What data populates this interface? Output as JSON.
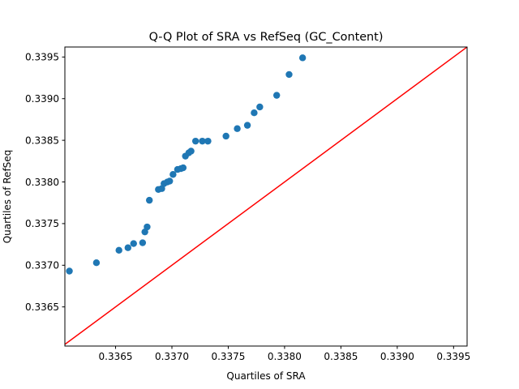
{
  "chart_data": {
    "type": "scatter",
    "title": "Q-Q Plot of SRA vs RefSeq (GC_Content)",
    "xlabel": "Quartiles of SRA",
    "ylabel": "Quartiles of RefSeq",
    "xlim": [
      0.33605,
      0.33962
    ],
    "ylim": [
      0.33603,
      0.33962
    ],
    "xticks": [
      0.3365,
      0.337,
      0.3375,
      0.338,
      0.3385,
      0.339,
      0.3395
    ],
    "xtick_labels": [
      "0.3365",
      "0.3370",
      "0.3375",
      "0.3380",
      "0.3385",
      "0.3390",
      "0.3395"
    ],
    "yticks": [
      0.3365,
      0.337,
      0.3375,
      0.338,
      0.3385,
      0.339,
      0.3395
    ],
    "ytick_labels": [
      "0.3365",
      "0.3370",
      "0.3375",
      "0.3380",
      "0.3385",
      "0.3390",
      "0.3395"
    ],
    "grid": false,
    "marker_color": "#1f77b4",
    "reference_line": {
      "color": "#ff0000",
      "type": "y=x"
    },
    "points": [
      {
        "x": 0.33609,
        "y": 0.33693
      },
      {
        "x": 0.33633,
        "y": 0.33703
      },
      {
        "x": 0.33653,
        "y": 0.33718
      },
      {
        "x": 0.33661,
        "y": 0.33721
      },
      {
        "x": 0.33666,
        "y": 0.33726
      },
      {
        "x": 0.33674,
        "y": 0.33727
      },
      {
        "x": 0.33676,
        "y": 0.3374
      },
      {
        "x": 0.33678,
        "y": 0.33746
      },
      {
        "x": 0.3368,
        "y": 0.33778
      },
      {
        "x": 0.33688,
        "y": 0.33791
      },
      {
        "x": 0.33691,
        "y": 0.33792
      },
      {
        "x": 0.33693,
        "y": 0.33798
      },
      {
        "x": 0.33696,
        "y": 0.338
      },
      {
        "x": 0.33698,
        "y": 0.33801
      },
      {
        "x": 0.33701,
        "y": 0.33809
      },
      {
        "x": 0.33705,
        "y": 0.33815
      },
      {
        "x": 0.33708,
        "y": 0.33816
      },
      {
        "x": 0.3371,
        "y": 0.33817
      },
      {
        "x": 0.33712,
        "y": 0.33831
      },
      {
        "x": 0.33715,
        "y": 0.33835
      },
      {
        "x": 0.33717,
        "y": 0.33837
      },
      {
        "x": 0.33721,
        "y": 0.33849
      },
      {
        "x": 0.33727,
        "y": 0.33849
      },
      {
        "x": 0.33732,
        "y": 0.33849
      },
      {
        "x": 0.33748,
        "y": 0.33855
      },
      {
        "x": 0.33758,
        "y": 0.33864
      },
      {
        "x": 0.33767,
        "y": 0.33868
      },
      {
        "x": 0.33773,
        "y": 0.33883
      },
      {
        "x": 0.33778,
        "y": 0.3389
      },
      {
        "x": 0.33793,
        "y": 0.33904
      },
      {
        "x": 0.33804,
        "y": 0.33929
      },
      {
        "x": 0.33816,
        "y": 0.33949
      }
    ]
  }
}
